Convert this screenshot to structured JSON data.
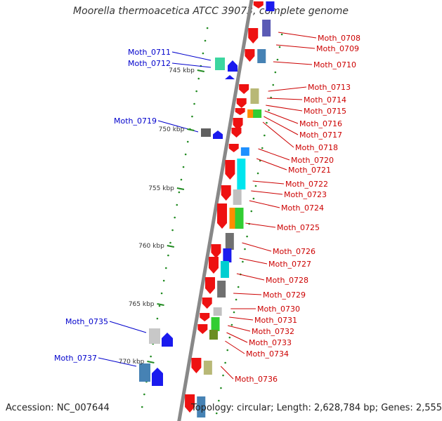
{
  "title": "Moorella thermoacetica ATCC 39073, complete genome",
  "footer": {
    "accession": "Accession: NC_007644",
    "topology": "Topology: circular; Length: 2,628,784 bp; Genes: 2,555"
  },
  "scale": {
    "unit": "kbp",
    "ticks": [
      745,
      750,
      755,
      760,
      765,
      770
    ]
  },
  "colors": {
    "forward_label": "#0000cc",
    "reverse_label": "#cc0000",
    "backbone": "#888888",
    "tick": "#228b22"
  },
  "genes": {
    "reverse": [
      "Moth_0708",
      "Moth_0709",
      "Moth_0710",
      "Moth_0713",
      "Moth_0714",
      "Moth_0715",
      "Moth_0716",
      "Moth_0717",
      "Moth_0718",
      "Moth_0720",
      "Moth_0721",
      "Moth_0722",
      "Moth_0723",
      "Moth_0724",
      "Moth_0725",
      "Moth_0726",
      "Moth_0727",
      "Moth_0728",
      "Moth_0729",
      "Moth_0730",
      "Moth_0731",
      "Moth_0732",
      "Moth_0733",
      "Moth_0734",
      "Moth_0736"
    ],
    "forward": [
      "Moth_0711",
      "Moth_0712",
      "Moth_0719",
      "Moth_0735",
      "Moth_0737"
    ]
  }
}
